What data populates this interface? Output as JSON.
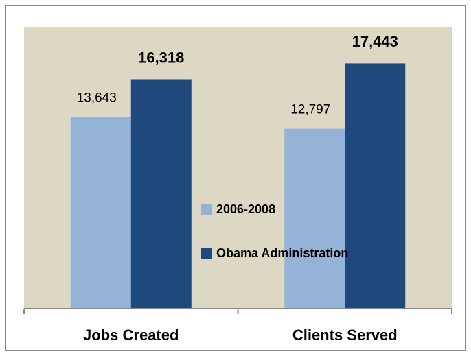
{
  "chart_data": {
    "type": "bar",
    "categories": [
      "Jobs Created",
      "Clients Served"
    ],
    "series": [
      {
        "name": "2006-2008",
        "color": "#95b3d7",
        "values": [
          13643,
          12797
        ],
        "value_labels": [
          "13,643",
          "12,797"
        ]
      },
      {
        "name": "Obama Administration",
        "color": "#1f497d",
        "values": [
          16318,
          17443
        ],
        "value_labels": [
          "16,318",
          "17,443"
        ]
      }
    ],
    "ylim": [
      0,
      20000
    ],
    "background": "#ddd8c4"
  }
}
